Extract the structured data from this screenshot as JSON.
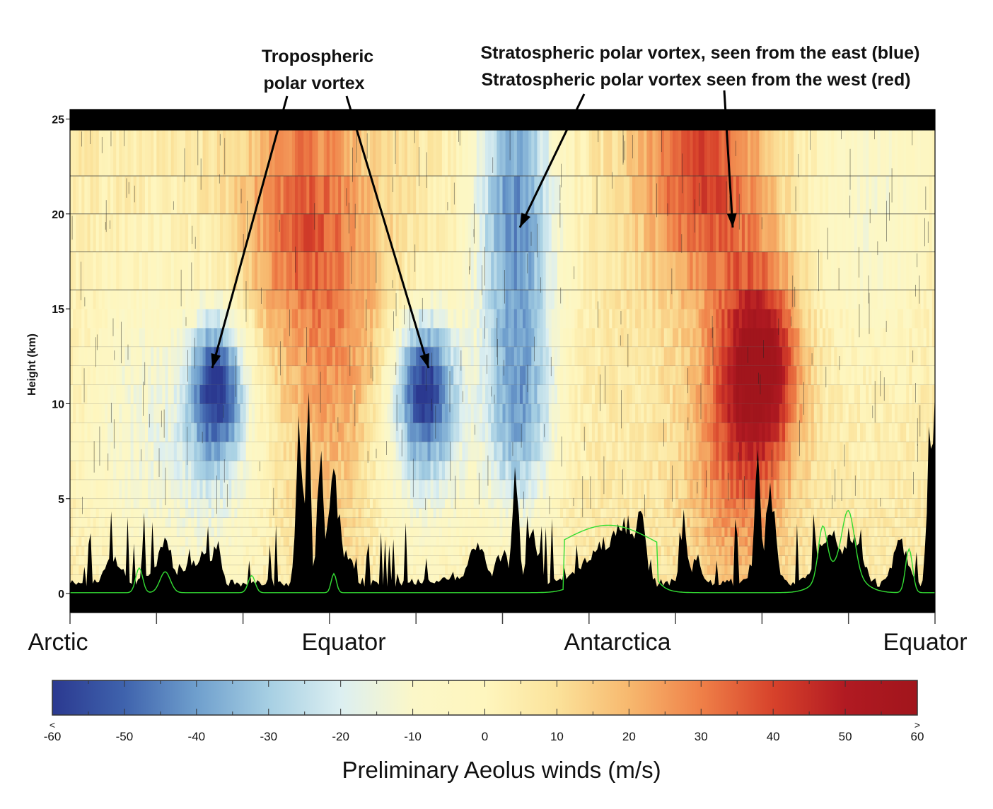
{
  "chart_data": {
    "type": "heatmap",
    "ylabel": "Height (km)",
    "ylim": [
      -1,
      25.5
    ],
    "y_ticks": [
      0,
      5,
      10,
      15,
      20,
      25
    ],
    "x_landmarks": [
      "Arctic",
      "Equator",
      "Antarctica",
      "Equator"
    ],
    "x_tick_count": 11,
    "colorbar": {
      "title": "Preliminary Aeolus winds (m/s)",
      "range": [
        -60,
        60
      ],
      "tick_labels": [
        "<\n-60",
        "-50",
        "-40",
        "-30",
        "-20",
        "-10",
        "0",
        "10",
        "20",
        "30",
        "40",
        "50",
        ">\n60"
      ],
      "colors": [
        "#2b3990",
        "#3f63ad",
        "#6f9fcd",
        "#a6cfe3",
        "#dceff1",
        "#fbf7c8",
        "#fef6be",
        "#fbe29a",
        "#f7b86e",
        "#ef8048",
        "#d7422b",
        "#b11a22",
        "#a1151c"
      ]
    },
    "features": [
      {
        "center_frac": 0.17,
        "zrange": [
          7,
          14.5
        ],
        "value": -52
      },
      {
        "center_frac": 0.41,
        "zrange": [
          6.5,
          15
        ],
        "value": -52
      },
      {
        "center_frac": 0.52,
        "zrange": [
          3,
          25
        ],
        "value": -48
      },
      {
        "center_frac": 0.26,
        "zrange": [
          13,
          25
        ],
        "value": 30
      },
      {
        "center_frac": 0.8,
        "zrange": [
          4,
          25
        ],
        "value": 48
      }
    ],
    "surface_line_color": "#33dd33"
  },
  "annotations": {
    "tropospheric_line1": "Tropospheric",
    "tropospheric_line2": "polar vortex",
    "strat_east": "Stratospheric polar vortex, seen from the east (blue)",
    "strat_west": "Stratospheric polar vortex seen from the west (red)"
  }
}
